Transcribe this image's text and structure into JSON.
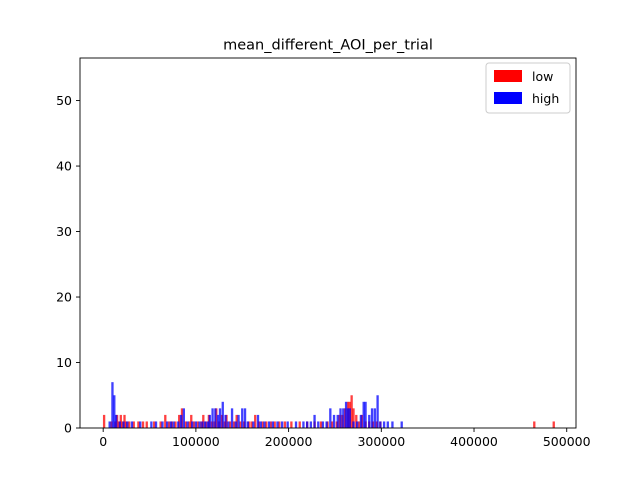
{
  "chart_data": {
    "type": "bar",
    "title": "mean_different_AOI_per_trial",
    "xlabel": "",
    "ylabel": "",
    "xlim": [
      -25000,
      510000
    ],
    "ylim": [
      0,
      56.5
    ],
    "xticks": [
      0,
      100000,
      200000,
      300000,
      400000,
      500000
    ],
    "xtick_labels": [
      "0",
      "100000",
      "200000",
      "300000",
      "400000",
      "500000"
    ],
    "yticks": [
      0,
      10,
      20,
      30,
      40,
      50
    ],
    "ytick_labels": [
      "0",
      "10",
      "20",
      "30",
      "40",
      "50"
    ],
    "grid": false,
    "legend_position": "top-right",
    "bin_width": 2500,
    "series": [
      {
        "name": "low",
        "color": "#ff0000",
        "points": [
          [
            1000,
            2
          ],
          [
            9000,
            1
          ],
          [
            13000,
            1
          ],
          [
            15000,
            2
          ],
          [
            17000,
            1
          ],
          [
            19000,
            2
          ],
          [
            21000,
            1
          ],
          [
            23000,
            2
          ],
          [
            25000,
            1
          ],
          [
            28000,
            1
          ],
          [
            33000,
            1
          ],
          [
            38000,
            1
          ],
          [
            43000,
            1
          ],
          [
            47000,
            1
          ],
          [
            55000,
            1
          ],
          [
            62000,
            1
          ],
          [
            67000,
            2
          ],
          [
            71000,
            1
          ],
          [
            74000,
            1
          ],
          [
            78000,
            1
          ],
          [
            82000,
            2
          ],
          [
            85000,
            3
          ],
          [
            89000,
            1
          ],
          [
            93000,
            1
          ],
          [
            95000,
            2
          ],
          [
            98000,
            1
          ],
          [
            102000,
            1
          ],
          [
            106000,
            1
          ],
          [
            108000,
            2
          ],
          [
            111000,
            1
          ],
          [
            114000,
            2
          ],
          [
            117000,
            1
          ],
          [
            120000,
            1
          ],
          [
            122000,
            3
          ],
          [
            125000,
            1
          ],
          [
            128000,
            2
          ],
          [
            131000,
            1
          ],
          [
            133000,
            2
          ],
          [
            137000,
            1
          ],
          [
            141000,
            1
          ],
          [
            144000,
            2
          ],
          [
            148000,
            1
          ],
          [
            152000,
            1
          ],
          [
            157000,
            1
          ],
          [
            160000,
            1
          ],
          [
            164000,
            2
          ],
          [
            168000,
            1
          ],
          [
            172000,
            1
          ],
          [
            176000,
            1
          ],
          [
            181000,
            1
          ],
          [
            185000,
            1
          ],
          [
            190000,
            1
          ],
          [
            196000,
            1
          ],
          [
            203000,
            1
          ],
          [
            212000,
            1
          ],
          [
            220000,
            1
          ],
          [
            228000,
            1
          ],
          [
            235000,
            1
          ],
          [
            242000,
            1
          ],
          [
            247000,
            1
          ],
          [
            252000,
            1
          ],
          [
            255000,
            2
          ],
          [
            258000,
            2
          ],
          [
            261000,
            3
          ],
          [
            264000,
            4
          ],
          [
            266000,
            4
          ],
          [
            268000,
            5
          ],
          [
            270000,
            3
          ],
          [
            273000,
            2
          ],
          [
            276000,
            1
          ],
          [
            279000,
            2
          ],
          [
            283000,
            1
          ],
          [
            287000,
            1
          ],
          [
            291000,
            1
          ],
          [
            295000,
            1
          ],
          [
            299000,
            1
          ],
          [
            465000,
            1
          ],
          [
            486000,
            1
          ]
        ]
      },
      {
        "name": "high",
        "color": "#0000ff",
        "points": [
          [
            7000,
            1
          ],
          [
            10000,
            7
          ],
          [
            12000,
            5
          ],
          [
            14000,
            2
          ],
          [
            18000,
            1
          ],
          [
            22000,
            1
          ],
          [
            26000,
            1
          ],
          [
            31000,
            1
          ],
          [
            40000,
            1
          ],
          [
            52000,
            1
          ],
          [
            57000,
            1
          ],
          [
            64000,
            1
          ],
          [
            69000,
            1
          ],
          [
            73000,
            1
          ],
          [
            76000,
            1
          ],
          [
            81000,
            1
          ],
          [
            84000,
            2
          ],
          [
            87000,
            3
          ],
          [
            91000,
            1
          ],
          [
            96000,
            1
          ],
          [
            100000,
            1
          ],
          [
            104000,
            1
          ],
          [
            107000,
            1
          ],
          [
            110000,
            1
          ],
          [
            113000,
            1
          ],
          [
            115000,
            2
          ],
          [
            118000,
            3
          ],
          [
            121000,
            3
          ],
          [
            124000,
            2
          ],
          [
            126000,
            3
          ],
          [
            129000,
            4
          ],
          [
            132000,
            2
          ],
          [
            135000,
            1
          ],
          [
            139000,
            3
          ],
          [
            143000,
            1
          ],
          [
            146000,
            2
          ],
          [
            150000,
            3
          ],
          [
            153000,
            3
          ],
          [
            156000,
            1
          ],
          [
            162000,
            1
          ],
          [
            167000,
            2
          ],
          [
            170000,
            1
          ],
          [
            174000,
            1
          ],
          [
            179000,
            1
          ],
          [
            183000,
            1
          ],
          [
            188000,
            1
          ],
          [
            193000,
            1
          ],
          [
            199000,
            1
          ],
          [
            208000,
            1
          ],
          [
            216000,
            1
          ],
          [
            220000,
            1
          ],
          [
            224000,
            1
          ],
          [
            228000,
            2
          ],
          [
            232000,
            1
          ],
          [
            237000,
            1
          ],
          [
            241000,
            1
          ],
          [
            245000,
            3
          ],
          [
            249000,
            2
          ],
          [
            253000,
            2
          ],
          [
            256000,
            3
          ],
          [
            259000,
            3
          ],
          [
            262000,
            4
          ],
          [
            264000,
            3
          ],
          [
            266000,
            3
          ],
          [
            270000,
            1
          ],
          [
            274000,
            1
          ],
          [
            278000,
            2
          ],
          [
            281000,
            4
          ],
          [
            283000,
            4
          ],
          [
            287000,
            2
          ],
          [
            290000,
            3
          ],
          [
            293000,
            3
          ],
          [
            296000,
            5
          ],
          [
            299000,
            1
          ],
          [
            303000,
            1
          ],
          [
            307000,
            1
          ],
          [
            312000,
            1
          ],
          [
            322000,
            1
          ]
        ]
      }
    ]
  }
}
